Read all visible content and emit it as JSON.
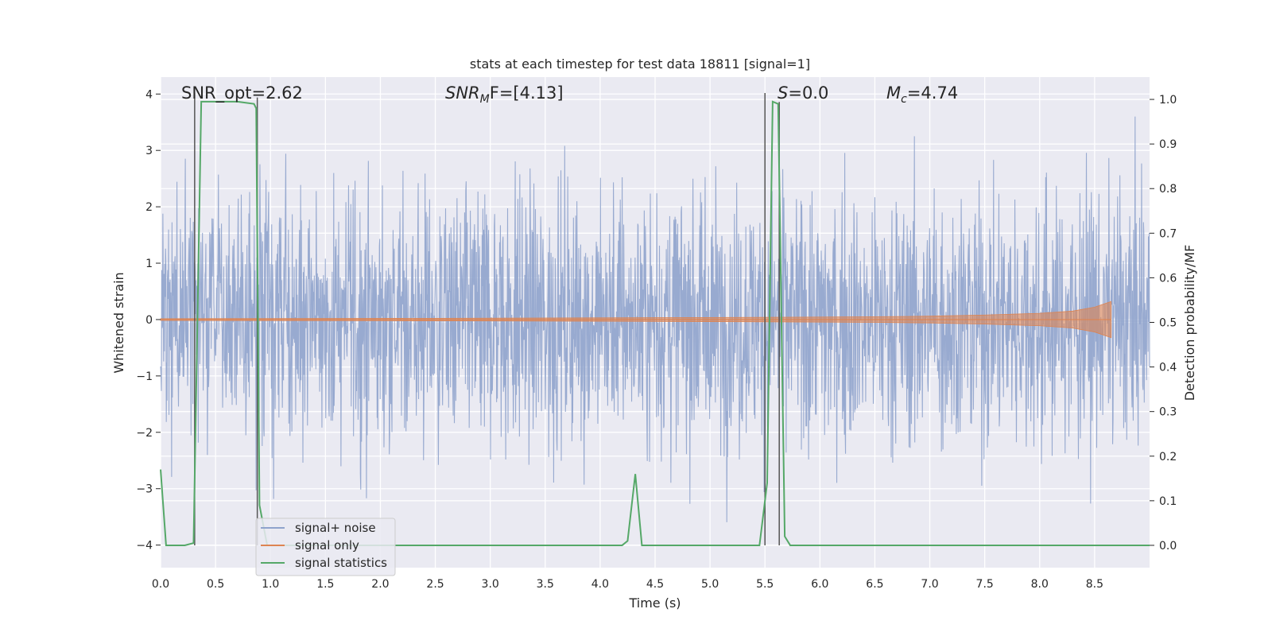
{
  "chart_data": {
    "type": "line",
    "title": "stats at each timestep for test data 18811 [signal=1]",
    "xlabel": "Time (s)",
    "ylabel": "Whitened strain",
    "ylabel_right": "Detection probability/MF",
    "xlim": [
      0.0,
      9.0
    ],
    "ylim": [
      -4.4,
      4.3
    ],
    "ylim_right": [
      -0.05,
      1.05
    ],
    "x_ticks": [
      "0.0",
      "0.5",
      "1.0",
      "1.5",
      "2.0",
      "2.5",
      "3.0",
      "3.5",
      "4.0",
      "4.5",
      "5.0",
      "5.5",
      "6.0",
      "6.5",
      "7.0",
      "7.5",
      "8.0",
      "8.5"
    ],
    "y_ticks": [
      "4",
      "3",
      "2",
      "1",
      "0",
      "−1",
      "−2",
      "−3",
      "−4"
    ],
    "y_right_ticks": [
      "1.0",
      "0.9",
      "0.8",
      "0.7",
      "0.6",
      "0.5",
      "0.4",
      "0.3",
      "0.2",
      "0.1",
      "0.0"
    ],
    "grid": true,
    "legend_position": "lower-left",
    "annotations": {
      "snr_opt": "SNR_opt=2.62",
      "snr_mf_main": "SNR",
      "snr_mf_sub": "M",
      "snr_mf_rest": "F=[4.13]",
      "s_main": "S",
      "s_rest": "=0.0",
      "mc_main": "M",
      "mc_sub": "c",
      "mc_rest": "=4.74"
    },
    "series": [
      {
        "name": "signal+ noise",
        "color": "#8fa3cc",
        "description": "whitened strain noise trace, roughly Gaussian, typical amplitude ~1.5, peaks to about +3.6 and -4.0",
        "envelope": {
          "x": [
            0.0,
            9.0
          ],
          "typical_max": 1.5,
          "typical_min": -1.6,
          "peak_max": 3.6,
          "peak_min": -4.0
        }
      },
      {
        "name": "signal only",
        "color": "#dd8452",
        "description": "chirp signal amplitude growing with time, ending near t=8.65",
        "x": [
          0.0,
          2.0,
          4.0,
          5.5,
          6.5,
          7.0,
          7.5,
          8.0,
          8.3,
          8.5,
          8.65
        ],
        "amplitude": [
          0.015,
          0.02,
          0.03,
          0.04,
          0.05,
          0.06,
          0.08,
          0.11,
          0.15,
          0.22,
          0.32
        ]
      },
      {
        "name": "signal statistics",
        "color": "#55a868",
        "axis": "right",
        "x": [
          0.0,
          0.05,
          0.15,
          0.22,
          0.3,
          0.37,
          0.5,
          0.7,
          0.85,
          0.87,
          0.9,
          0.97,
          1.05,
          1.3,
          4.2,
          4.25,
          4.32,
          4.38,
          4.5,
          5.45,
          5.52,
          5.57,
          5.62,
          5.68,
          5.73,
          6.0,
          9.0
        ],
        "y": [
          0.17,
          0.0,
          0.0,
          0.0,
          0.005,
          0.995,
          0.995,
          0.995,
          0.99,
          0.98,
          0.09,
          0.0,
          0.0,
          0.0,
          0.0,
          0.01,
          0.16,
          0.0,
          0.0,
          0.0,
          0.14,
          0.995,
          0.99,
          0.02,
          0.0,
          0.0,
          0.0
        ]
      }
    ],
    "vertical_lines": [
      {
        "x": 0.31,
        "top": 1.0,
        "color": "#555555"
      },
      {
        "x": 0.88,
        "top": 0.99,
        "color": "#555555"
      },
      {
        "x": 5.5,
        "top": 1.0,
        "color": "#555555"
      },
      {
        "x": 5.63,
        "top": 0.98,
        "color": "#555555"
      }
    ]
  }
}
